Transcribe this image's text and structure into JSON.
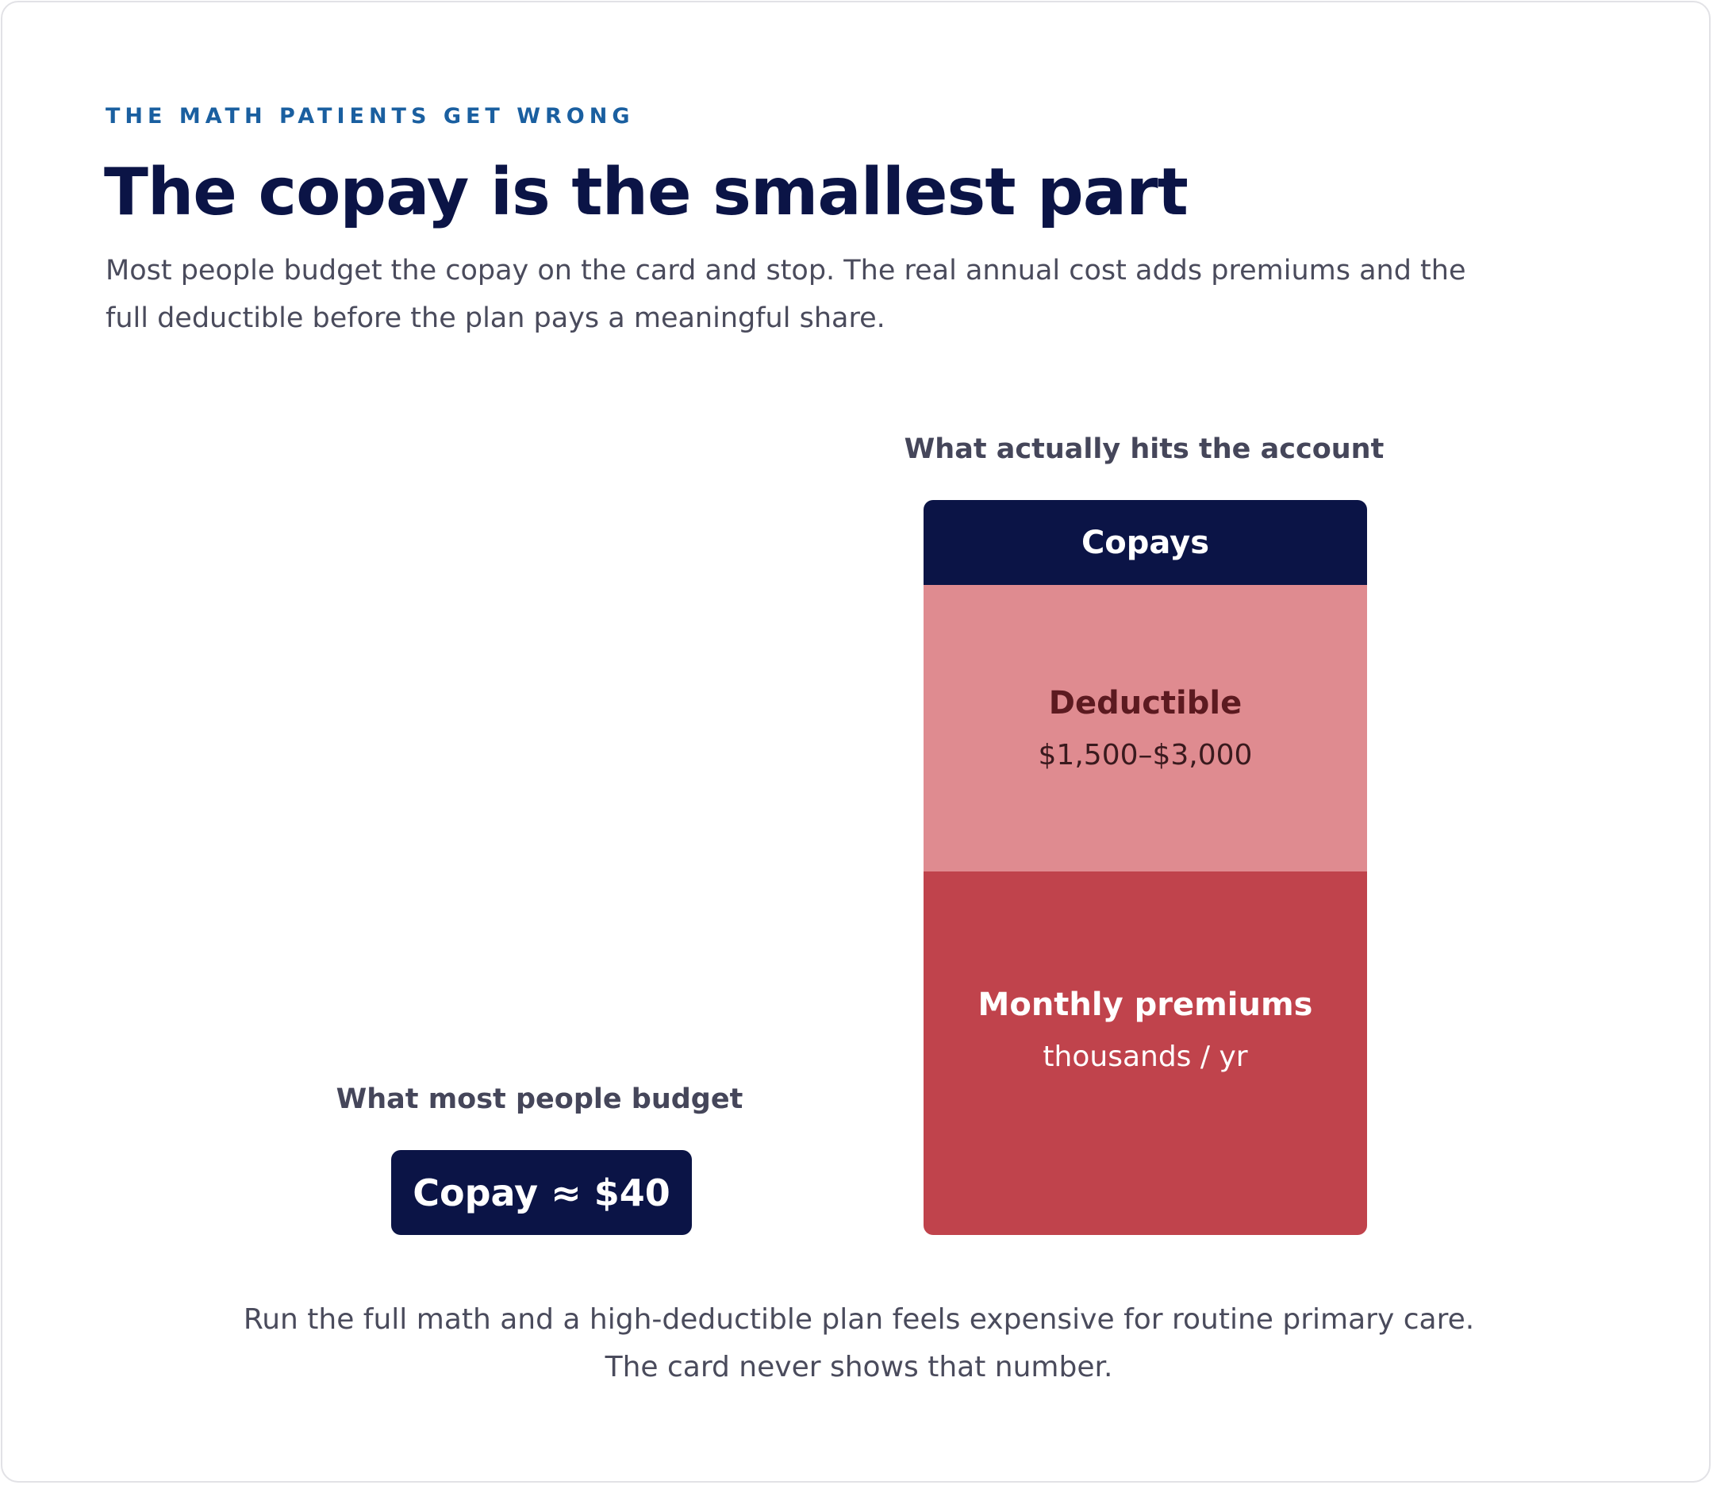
{
  "header": {
    "eyebrow": "THE MATH PATIENTS GET WRONG",
    "title": "The copay is the smallest part",
    "intro": "Most people budget the copay on the card and stop. The real annual cost adds premiums and the full deductible before the plan pays a meaningful share."
  },
  "left": {
    "label": "What most people budget",
    "box": "Copay ≈ $40"
  },
  "right": {
    "label": "What actually hits the account",
    "segments": [
      {
        "name": "Copays"
      },
      {
        "name": "Deductible",
        "detail": "$1,500–$3,000"
      },
      {
        "name": "Monthly premiums",
        "detail": "thousands / yr"
      }
    ]
  },
  "footer": [
    "Run the full math and a high-deductible plan feels expensive for routine primary care.",
    "The card never shows that number."
  ]
}
